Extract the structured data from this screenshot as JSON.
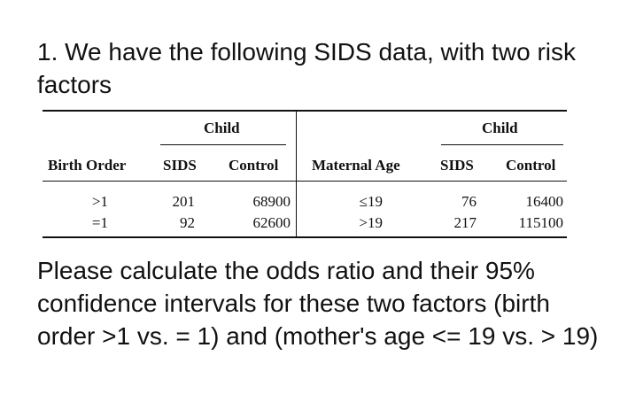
{
  "question": {
    "heading": "1. We have the following SIDS data, with two risk factors",
    "body": "Please calculate the odds ratio and their 95% confidence intervals for these two factors (birth order >1 vs. = 1) and (mother's age <= 19 vs. > 19)"
  },
  "table": {
    "left": {
      "group_header": "Child",
      "columns": [
        "Birth Order",
        "SIDS",
        "Control"
      ],
      "rows": [
        {
          "label": ">1",
          "sids": "201",
          "control": "68900"
        },
        {
          "label": "=1",
          "sids": "92",
          "control": "62600"
        }
      ]
    },
    "right": {
      "group_header": "Child",
      "columns": [
        "Maternal Age",
        "SIDS",
        "Control"
      ],
      "rows": [
        {
          "label": "≤19",
          "sids": "76",
          "control": "16400"
        },
        {
          "label": ">19",
          "sids": "217",
          "control": "115100"
        }
      ]
    }
  }
}
